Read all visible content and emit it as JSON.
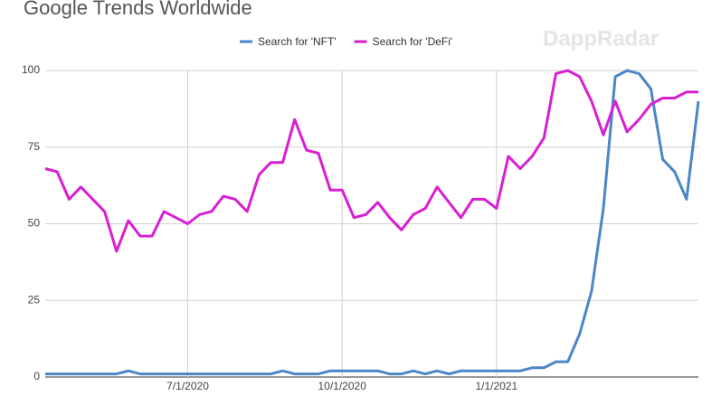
{
  "chart_data": {
    "type": "line",
    "title": "Google Trends Worldwide",
    "watermark": "DappRadar",
    "categories": [
      null,
      null,
      null,
      null,
      null,
      null,
      null,
      null,
      null,
      null,
      null,
      null,
      "7/1/2020",
      null,
      null,
      null,
      null,
      null,
      null,
      null,
      null,
      null,
      null,
      null,
      null,
      "10/1/2020",
      null,
      null,
      null,
      null,
      null,
      null,
      null,
      null,
      null,
      null,
      null,
      null,
      "1/1/2021",
      null,
      null,
      null,
      null,
      null,
      null,
      null,
      null,
      null,
      null,
      null,
      null,
      null,
      null,
      null,
      null,
      null
    ],
    "series": [
      {
        "name": "Search for 'NFT'",
        "color": "#4a86c8",
        "values": [
          1,
          1,
          1,
          1,
          1,
          1,
          1,
          2,
          1,
          1,
          1,
          1,
          1,
          1,
          1,
          1,
          1,
          1,
          1,
          1,
          2,
          1,
          1,
          1,
          2,
          2,
          2,
          2,
          2,
          1,
          1,
          2,
          1,
          2,
          1,
          2,
          2,
          2,
          2,
          2,
          2,
          3,
          3,
          5,
          5,
          14,
          28,
          55,
          98,
          100,
          99,
          94,
          71,
          67,
          58,
          90
        ]
      },
      {
        "name": "Search for 'DeFi'",
        "color": "#d81fd3",
        "values": [
          68,
          67,
          58,
          62,
          58,
          54,
          41,
          51,
          46,
          46,
          54,
          52,
          50,
          53,
          54,
          59,
          58,
          54,
          66,
          70,
          70,
          84,
          74,
          73,
          61,
          61,
          52,
          53,
          57,
          52,
          48,
          53,
          55,
          62,
          57,
          52,
          58,
          58,
          55,
          72,
          68,
          72,
          78,
          99,
          100,
          98,
          90,
          79,
          90,
          80,
          84,
          89,
          91,
          91,
          93,
          93
        ]
      }
    ],
    "ylim": [
      0,
      100
    ],
    "yticks": [
      0,
      25,
      50,
      75,
      100
    ],
    "grid": true
  }
}
